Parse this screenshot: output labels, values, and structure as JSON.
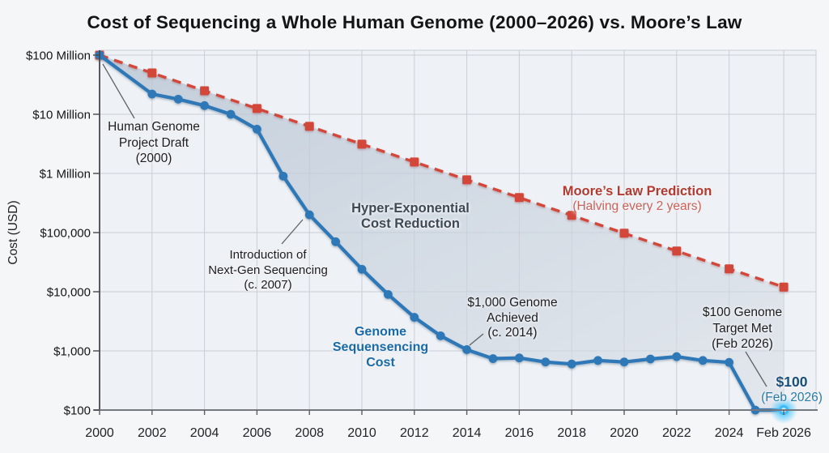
{
  "title": "Cost of Sequencing a Whole Human Genome (2000–2026) vs. Moore’s Law",
  "colors": {
    "background": "#f5f6f8",
    "plot_background": "#eef1f5",
    "gridline": "#c9cfd7",
    "genome_line": "#2e78b8",
    "moores_line": "#d3463b",
    "fill_between": "#bac7d5",
    "endpoint_glow": "#59ccff",
    "annotation_dark": "#1c1d1f",
    "annotation_slate": "#3d4954",
    "annotation_red": "#b23a30",
    "annotation_blue": "#196aa6"
  },
  "chart_data": {
    "type": "line",
    "title": "Cost of Sequencing a Whole Human Genome (2000–2026) vs. Moore’s Law",
    "xlabel": "",
    "ylabel": "Cost (USD)",
    "y_scale": "log",
    "ylim": [
      100,
      100000000
    ],
    "xlim": [
      2000,
      2026.5
    ],
    "grid": true,
    "legend_position": "none (inline labels)",
    "x_ticks": [
      {
        "label": "2000",
        "x": 2000
      },
      {
        "label": "2002",
        "x": 2002
      },
      {
        "label": "2004",
        "x": 2004
      },
      {
        "label": "2006",
        "x": 2006
      },
      {
        "label": "2008",
        "x": 2008
      },
      {
        "label": "2010",
        "x": 2010
      },
      {
        "label": "2012",
        "x": 2012
      },
      {
        "label": "2014",
        "x": 2014
      },
      {
        "label": "2016",
        "x": 2016
      },
      {
        "label": "2018",
        "x": 2018
      },
      {
        "label": "2020",
        "x": 2020
      },
      {
        "label": "2022",
        "x": 2022
      },
      {
        "label": "2024",
        "x": 2024
      },
      {
        "label": "Feb 2026",
        "x": 2026.083
      }
    ],
    "y_ticks": [
      {
        "label": "$100 Million",
        "v": 100000000
      },
      {
        "label": "$10 Million",
        "v": 10000000
      },
      {
        "label": "$1 Million",
        "v": 1000000
      },
      {
        "label": "$100,000",
        "v": 100000
      },
      {
        "label": "$10,000",
        "v": 10000
      },
      {
        "label": "$1,000",
        "v": 1000
      },
      {
        "label": "$100",
        "v": 100
      }
    ],
    "fill_between_series": true,
    "series": [
      {
        "name": "Genome Sequencing Cost",
        "color": "#2e78b8",
        "line": "solid",
        "marker": "circle",
        "endpoint_glow": true,
        "x": [
          2000,
          2002,
          2003,
          2004,
          2005,
          2006,
          2007,
          2008,
          2009,
          2010,
          2011,
          2012,
          2013,
          2014,
          2015,
          2016,
          2017,
          2018,
          2019,
          2020,
          2021,
          2022,
          2023,
          2024,
          2025,
          2026.083
        ],
        "values": [
          100000000,
          22000000,
          18000000,
          14000000,
          10000000,
          5600000,
          900000,
          200000,
          70000,
          24000,
          9000,
          3700,
          1800,
          1050,
          740,
          760,
          650,
          600,
          690,
          650,
          730,
          800,
          690,
          640,
          100,
          100
        ]
      },
      {
        "name": "Moore’s Law Prediction (Halving every 2 years)",
        "color": "#d3463b",
        "line": "dashed",
        "marker": "square",
        "x": [
          2000,
          2002,
          2004,
          2006,
          2008,
          2010,
          2012,
          2014,
          2016,
          2018,
          2020,
          2022,
          2024,
          2026.083
        ],
        "values": [
          100000000,
          50000000,
          25000000,
          12500000,
          6250000,
          3125000,
          1562500,
          781250,
          390625,
          195313,
          97656,
          48828,
          24414,
          12000
        ]
      }
    ]
  },
  "annotations": {
    "hgp": {
      "lines": [
        "Human Genome",
        "Project Draft",
        "(2000)"
      ]
    },
    "ngs": {
      "lines": [
        "Introduction of",
        "Next-Gen Sequencing",
        "(c. 2007)"
      ]
    },
    "hyper": {
      "lines": [
        "Hyper-Exponential",
        "Cost Reduction"
      ]
    },
    "moores": {
      "line1": "Moore’s Law Prediction",
      "line2": "(Halving every 2 years)"
    },
    "k1000": {
      "lines": [
        "$1,000 Genome",
        "Achieved",
        "(c. 2014)"
      ]
    },
    "g100": {
      "lines": [
        "$100 Genome",
        "Target Met",
        "(Feb 2026)"
      ]
    },
    "gseq": {
      "lines": [
        "Genome",
        "Sequensencing",
        "Cost"
      ]
    },
    "endpoint": {
      "line1": "$100",
      "line2": "(Feb 2026)"
    }
  }
}
